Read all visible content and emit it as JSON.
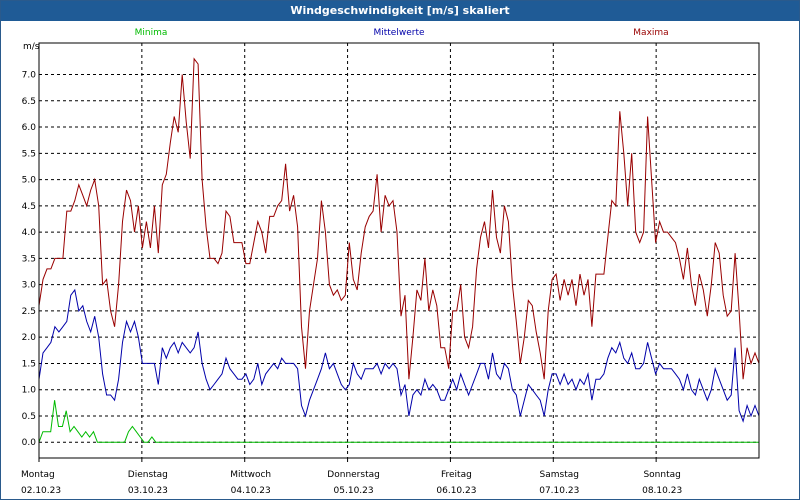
{
  "window": {
    "title": "Windgeschwindigkeit [m/s] skaliert"
  },
  "colors": {
    "min": "#00bb00",
    "mean": "#0000aa",
    "max": "#990000",
    "grid": "#000000"
  },
  "chart_data": {
    "type": "line",
    "ylabel": "m/s",
    "ylim": [
      -0.3,
      7.6
    ],
    "yticks": [
      "0.0",
      "0.5",
      "1.0",
      "1.5",
      "2.0",
      "2.5",
      "3.0",
      "3.5",
      "4.0",
      "4.5",
      "5.0",
      "5.5",
      "6.0",
      "6.5",
      "7.0"
    ],
    "x_start": "02.10.23 00:00",
    "x_days": 7,
    "day_labels": [
      {
        "day": "Montag",
        "date": "02.10.23"
      },
      {
        "day": "Dienstag",
        "date": "03.10.23"
      },
      {
        "day": "Mittwoch",
        "date": "04.10.23"
      },
      {
        "day": "Donnerstag",
        "date": "05.10.23"
      },
      {
        "day": "Freitag",
        "date": "06.10.23"
      },
      {
        "day": "Samstag",
        "date": "07.10.23"
      },
      {
        "day": "Sonntag",
        "date": "08.10.23"
      }
    ],
    "legend": [
      "Minima",
      "Mittelwerte",
      "Maxima"
    ],
    "series": [
      {
        "name": "Maxima",
        "values": [
          2.6,
          3.1,
          3.3,
          3.3,
          3.5,
          3.5,
          3.5,
          4.4,
          4.4,
          4.6,
          4.9,
          4.7,
          4.5,
          4.8,
          5.0,
          4.5,
          3.0,
          3.1,
          2.5,
          2.2,
          3.0,
          4.2,
          4.8,
          4.6,
          4.0,
          4.5,
          3.7,
          4.2,
          3.7,
          4.5,
          3.6,
          4.9,
          5.1,
          5.7,
          6.2,
          5.9,
          7.0,
          6.1,
          5.4,
          7.3,
          7.2,
          5.0,
          4.1,
          3.5,
          3.5,
          3.4,
          3.6,
          4.4,
          4.3,
          3.8,
          3.8,
          3.8,
          3.4,
          3.4,
          3.8,
          4.2,
          4.0,
          3.6,
          4.3,
          4.3,
          4.5,
          4.6,
          5.3,
          4.4,
          4.7,
          4.1,
          2.2,
          1.4,
          2.5,
          3.0,
          3.5,
          4.6,
          4.0,
          3.0,
          2.8,
          2.9,
          2.7,
          2.8,
          3.8,
          3.1,
          2.9,
          3.6,
          4.1,
          4.3,
          4.4,
          5.1,
          4.0,
          4.7,
          4.5,
          4.6,
          4.0,
          2.4,
          2.8,
          1.2,
          2.0,
          2.9,
          2.7,
          3.5,
          2.5,
          2.9,
          2.6,
          1.8,
          1.8,
          1.4,
          2.5,
          2.5,
          3.0,
          2.0,
          1.8,
          2.2,
          3.3,
          3.9,
          4.2,
          3.7,
          4.8,
          3.9,
          3.6,
          4.5,
          4.2,
          3.0,
          2.3,
          1.5,
          2.0,
          2.7,
          2.6,
          2.1,
          1.7,
          1.2,
          2.5,
          3.1,
          3.2,
          2.7,
          3.1,
          2.8,
          3.1,
          2.6,
          3.2,
          2.8,
          3.1,
          2.2,
          3.2,
          3.2,
          3.2,
          3.9,
          4.6,
          4.5,
          6.3,
          5.5,
          4.5,
          5.5,
          4.0,
          3.8,
          4.0,
          6.2,
          5.0,
          3.8,
          4.2,
          4.0,
          4.0,
          3.9,
          3.8,
          3.5,
          3.1,
          3.7,
          3.0,
          2.6,
          3.2,
          2.9,
          2.4,
          3.0,
          3.8,
          3.6,
          2.8,
          2.4,
          2.5,
          3.6,
          2.5,
          1.2,
          1.8,
          1.5,
          1.7,
          1.5
        ],
        "color": "#990000"
      },
      {
        "name": "Mittelwerte",
        "values": [
          1.2,
          1.7,
          1.8,
          1.9,
          2.2,
          2.1,
          2.2,
          2.3,
          2.8,
          2.9,
          2.5,
          2.6,
          2.3,
          2.1,
          2.4,
          2.0,
          1.3,
          0.9,
          0.9,
          0.8,
          1.2,
          1.9,
          2.3,
          2.1,
          2.3,
          2.0,
          1.5,
          1.5,
          1.5,
          1.5,
          1.1,
          1.8,
          1.6,
          1.8,
          1.9,
          1.7,
          1.9,
          1.8,
          1.7,
          1.8,
          2.1,
          1.5,
          1.2,
          1.0,
          1.1,
          1.2,
          1.3,
          1.6,
          1.4,
          1.3,
          1.2,
          1.2,
          1.3,
          1.1,
          1.2,
          1.5,
          1.1,
          1.3,
          1.4,
          1.5,
          1.4,
          1.6,
          1.5,
          1.5,
          1.5,
          1.4,
          0.7,
          0.5,
          0.8,
          1.0,
          1.2,
          1.4,
          1.7,
          1.4,
          1.5,
          1.3,
          1.1,
          1.0,
          1.1,
          1.5,
          1.3,
          1.2,
          1.4,
          1.4,
          1.4,
          1.5,
          1.3,
          1.5,
          1.4,
          1.5,
          1.4,
          0.9,
          1.1,
          0.5,
          0.9,
          1.0,
          0.9,
          1.2,
          1.0,
          1.1,
          1.0,
          0.8,
          0.8,
          1.0,
          1.2,
          1.0,
          1.3,
          1.1,
          0.9,
          1.1,
          1.3,
          1.5,
          1.5,
          1.2,
          1.7,
          1.3,
          1.2,
          1.5,
          1.4,
          1.0,
          0.9,
          0.5,
          0.8,
          1.1,
          1.0,
          0.9,
          0.8,
          0.5,
          1.0,
          1.3,
          1.3,
          1.1,
          1.3,
          1.1,
          1.2,
          1.0,
          1.2,
          1.1,
          1.3,
          0.8,
          1.2,
          1.2,
          1.3,
          1.6,
          1.8,
          1.7,
          1.9,
          1.6,
          1.5,
          1.7,
          1.4,
          1.4,
          1.5,
          1.9,
          1.6,
          1.3,
          1.5,
          1.4,
          1.4,
          1.4,
          1.3,
          1.2,
          1.0,
          1.3,
          1.0,
          0.9,
          1.2,
          1.0,
          0.8,
          1.0,
          1.4,
          1.2,
          1.0,
          0.8,
          0.9,
          1.8,
          0.6,
          0.4,
          0.7,
          0.5,
          0.7,
          0.5
        ],
        "color": "#0000aa"
      },
      {
        "name": "Minima",
        "values": [
          0.0,
          0.2,
          0.2,
          0.2,
          0.8,
          0.3,
          0.3,
          0.6,
          0.2,
          0.3,
          0.2,
          0.1,
          0.2,
          0.1,
          0.2,
          0.0,
          0.0,
          0.0,
          0.0,
          0.0,
          0.0,
          0.0,
          0.0,
          0.2,
          0.3,
          0.2,
          0.1,
          0.0,
          0.0,
          0.1,
          0.0,
          0.0,
          0.0,
          0.0,
          0.0,
          0.0,
          0.0,
          0.0,
          0.0,
          0.0,
          0.0,
          0.0,
          0.0,
          0.0,
          0.0,
          0.0,
          0.0,
          0.0,
          0.0,
          0.0,
          0.0,
          0.0,
          0.0,
          0.0,
          0.0,
          0.0,
          0.0,
          0.0,
          0.0,
          0.0,
          0.0,
          0.0,
          0.0,
          0.0,
          0.0,
          0.0,
          0.0,
          0.0,
          0.0,
          0.0,
          0.0,
          0.0,
          0.0,
          0.0,
          0.0,
          0.0,
          0.0,
          0.0,
          0.0,
          0.0,
          0.0,
          0.0,
          0.0,
          0.0,
          0.0,
          0.0,
          0.0,
          0.0,
          0.0,
          0.0,
          0.0,
          0.0,
          0.0,
          0.0,
          0.0,
          0.0,
          0.0,
          0.0,
          0.0,
          0.0,
          0.0,
          0.0,
          0.0,
          0.0,
          0.0,
          0.0,
          0.0,
          0.0,
          0.0,
          0.0,
          0.0,
          0.0,
          0.0,
          0.0,
          0.0,
          0.0,
          0.0,
          0.0,
          0.0,
          0.0,
          0.0,
          0.0,
          0.0,
          0.0,
          0.0,
          0.0,
          0.0,
          0.0,
          0.0,
          0.0,
          0.0,
          0.0,
          0.0,
          0.0,
          0.0,
          0.0,
          0.0,
          0.0,
          0.0,
          0.0,
          0.0,
          0.0,
          0.0,
          0.0,
          0.0,
          0.0,
          0.0,
          0.0,
          0.0,
          0.0,
          0.0,
          0.0,
          0.0,
          0.0,
          0.0,
          0.0,
          0.0,
          0.0,
          0.0,
          0.0,
          0.0,
          0.0,
          0.0,
          0.0,
          0.0,
          0.0,
          0.0,
          0.0,
          0.0,
          0.0,
          0.0,
          0.0,
          0.0,
          0.0,
          0.0,
          0.0,
          0.0,
          0.0,
          0.0,
          0.0,
          0.0,
          0.0,
          0.0,
          0.0,
          0.0,
          0.0
        ],
        "color": "#00bb00"
      }
    ]
  }
}
